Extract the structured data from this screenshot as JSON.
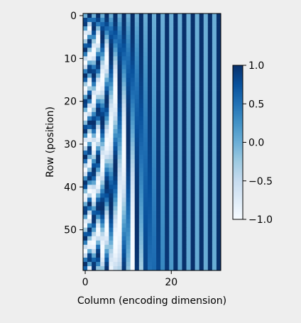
{
  "chart_data": {
    "type": "heatmap",
    "title": "",
    "xlabel": "Column (encoding dimension)",
    "ylabel": "Row (position)",
    "n_rows": 60,
    "n_cols": 32,
    "x_ticks": [
      0,
      20
    ],
    "y_ticks": [
      0,
      10,
      20,
      30,
      40,
      50
    ],
    "value_range": [
      -1.0,
      1.0
    ],
    "values_formula": "sinusoidal positional encoding: even columns sin(row / 10000^(col/32)), odd columns cos(row / 10000^((col-1)/32))",
    "colormap": "Blues",
    "colorbar": {
      "ticks": [
        1.0,
        0.5,
        0.0,
        -0.5,
        -1.0
      ],
      "tick_labels": [
        "1.0",
        "0.5",
        "0.0",
        "−0.5",
        "−1.0"
      ],
      "position": "right"
    },
    "grid": false
  },
  "colors": {
    "background": "#eeeeee",
    "low": "#f7fbff",
    "high": "#08306b"
  }
}
